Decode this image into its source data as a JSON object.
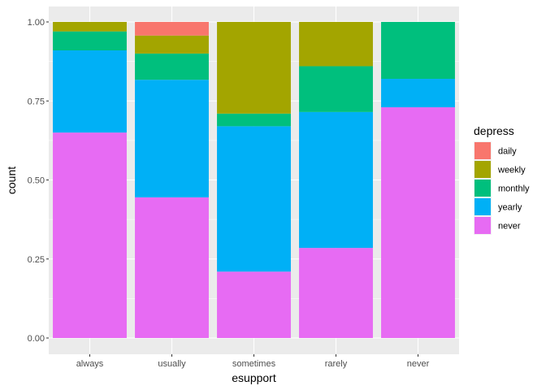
{
  "chart_data": {
    "type": "bar",
    "stacked": "fill",
    "xlabel": "esupport",
    "ylabel": "count",
    "ylim": [
      0,
      1
    ],
    "yticks": [
      "0.00",
      "0.25",
      "0.50",
      "0.75",
      "1.00"
    ],
    "grid": true,
    "legend_position": "right",
    "legend_title": "depress",
    "categories": [
      "always",
      "usually",
      "sometimes",
      "rarely",
      "never"
    ],
    "series": [
      {
        "name": "daily",
        "color": "#F8766D",
        "values": [
          0.0,
          0.043,
          0.0,
          0.0,
          0.0
        ]
      },
      {
        "name": "weekly",
        "color": "#A3A500",
        "values": [
          0.03,
          0.057,
          0.29,
          0.14,
          0.0
        ]
      },
      {
        "name": "monthly",
        "color": "#00BF7D",
        "values": [
          0.06,
          0.083,
          0.04,
          0.145,
          0.18
        ]
      },
      {
        "name": "yearly",
        "color": "#00B0F6",
        "values": [
          0.26,
          0.372,
          0.46,
          0.43,
          0.09
        ]
      },
      {
        "name": "never",
        "color": "#E76BF3",
        "values": [
          0.65,
          0.445,
          0.21,
          0.285,
          0.73
        ]
      }
    ],
    "panel_background": "#EBEBEB",
    "grid_color": "#FFFFFF"
  }
}
